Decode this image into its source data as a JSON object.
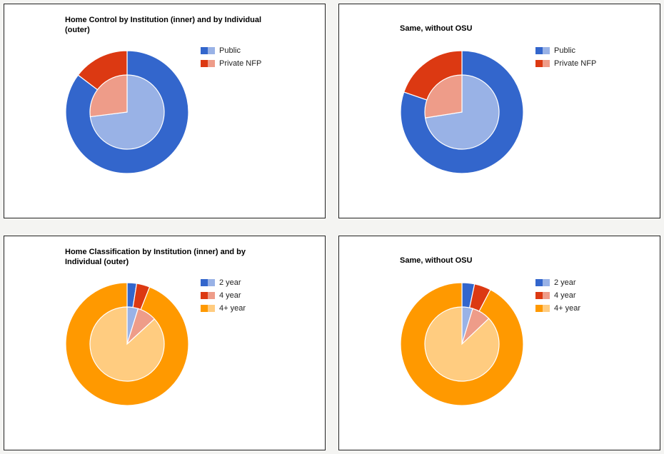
{
  "chart_data": [
    {
      "type": "pie",
      "title": "Home Control by Institution (inner) and by Individual (outer)",
      "legend": [
        "Public",
        "Private NFP"
      ],
      "legend_position": "right",
      "inner": [
        73,
        27
      ],
      "outer": [
        85.3,
        14.7
      ],
      "colors_outer": [
        "#3366cc",
        "#dc3912"
      ],
      "colors_inner": [
        "#99b2e6",
        "#ee9c89"
      ]
    },
    {
      "type": "pie",
      "title": "Same, without OSU",
      "legend": [
        "Public",
        "Private NFP"
      ],
      "legend_position": "right",
      "inner": [
        72.5,
        27.5
      ],
      "outer": [
        80.3,
        19.7
      ],
      "colors_outer": [
        "#3366cc",
        "#dc3912"
      ],
      "colors_inner": [
        "#99b2e6",
        "#ee9c89"
      ]
    },
    {
      "type": "pie",
      "title": "Home Classification by Institution (inner) and by Individual (outer)",
      "legend": [
        "2 year",
        "4 year",
        "4+ year"
      ],
      "legend_position": "right",
      "inner": [
        4.8,
        8.4,
        86.8
      ],
      "outer": [
        2.5,
        3.5,
        94
      ],
      "colors_outer": [
        "#3366cc",
        "#dc3912",
        "#ff9900"
      ],
      "colors_inner": [
        "#99b2e6",
        "#ee9c89",
        "#ffcc80"
      ]
    },
    {
      "type": "pie",
      "title": "Same, without OSU",
      "legend": [
        "2 year",
        "4 year",
        "4+ year"
      ],
      "legend_position": "right",
      "inner": [
        4.7,
        8.2,
        87.1
      ],
      "outer": [
        3.3,
        4.4,
        92.3
      ],
      "colors_outer": [
        "#3366cc",
        "#dc3912",
        "#ff9900"
      ],
      "colors_inner": [
        "#99b2e6",
        "#ee9c89",
        "#ffcc80"
      ]
    }
  ]
}
